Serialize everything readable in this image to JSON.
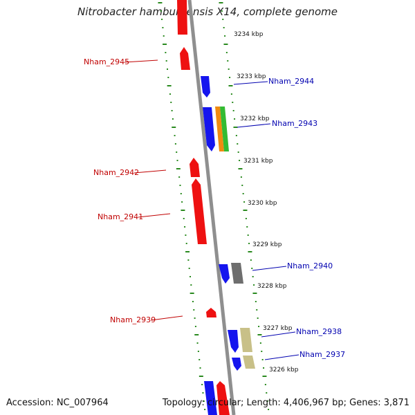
{
  "title": "Nitrobacter hamburgensis X14, complete genome",
  "footer": {
    "accession": "Accession: NC_007964",
    "topology": "Topology: circular; Length: 4,406,967 bp; Genes: 3,871"
  },
  "colors": {
    "backbone": "#8f8f8f",
    "tick_ring": "#2a8a1f",
    "reverse_gene": "#ee1111",
    "forward_gene": "#1515ee",
    "orange_feature": "#f08a10",
    "green_feature": "#33bb33",
    "gray_feature": "#6e6e6e",
    "khaki_feature": "#c8c088",
    "red_label": "#c00000",
    "blue_label": "#0000b0"
  },
  "kbp_labels": [
    {
      "text": "3234 kbp",
      "pos_kbp": 3234
    },
    {
      "text": "3233 kbp",
      "pos_kbp": 3233
    },
    {
      "text": "3232 kbp",
      "pos_kbp": 3232
    },
    {
      "text": "3231 kbp",
      "pos_kbp": 3231
    },
    {
      "text": "3230 kbp",
      "pos_kbp": 3230
    },
    {
      "text": "3229 kbp",
      "pos_kbp": 3229
    },
    {
      "text": "3228 kbp",
      "pos_kbp": 3228
    },
    {
      "text": "3227 kbp",
      "pos_kbp": 3227
    },
    {
      "text": "3226 kbp",
      "pos_kbp": 3226
    }
  ],
  "gene_labels_left": [
    "Nham_2945",
    "Nham_2942",
    "Nham_2941",
    "Nham_2939"
  ],
  "gene_labels_right": [
    "Nham_2944",
    "Nham_2943",
    "Nham_2940",
    "Nham_2938",
    "Nham_2937"
  ]
}
